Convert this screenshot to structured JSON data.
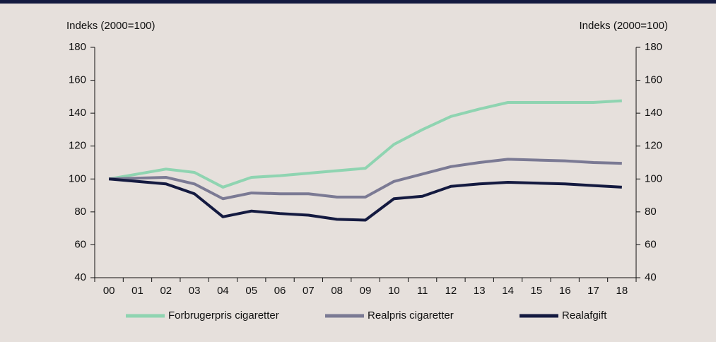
{
  "chart_data": {
    "type": "line",
    "y_label": "Indeks (2000=100)",
    "y2_label": "Indeks (2000=100)",
    "categories": [
      "00",
      "01",
      "02",
      "03",
      "04",
      "05",
      "06",
      "07",
      "08",
      "09",
      "10",
      "11",
      "12",
      "13",
      "14",
      "15",
      "16",
      "17",
      "18"
    ],
    "series": [
      {
        "name": "Forbrugerpris cigaretter",
        "color": "#8fd4b1",
        "values": [
          100,
          103,
          106,
          104,
          95,
          101,
          102,
          103.5,
          105,
          106.5,
          121,
          130,
          138,
          142.5,
          146.5,
          146.5,
          146.5,
          146.5,
          147.5
        ]
      },
      {
        "name": "Realpris cigaretter",
        "color": "#7b7a94",
        "values": [
          100,
          100.5,
          101,
          97,
          88,
          91.5,
          91,
          91,
          89,
          89,
          98.5,
          103,
          107.5,
          110,
          112,
          111.5,
          111,
          110,
          109.5
        ]
      },
      {
        "name": "Realafgift",
        "color": "#141a40",
        "values": [
          100,
          98.5,
          97,
          91,
          77,
          80.5,
          79,
          78,
          75.5,
          75,
          88,
          89.5,
          95.5,
          97,
          98,
          97.5,
          97,
          96,
          95
        ]
      }
    ],
    "ylim": [
      40,
      180
    ],
    "yticks": [
      40,
      60,
      80,
      100,
      120,
      140,
      160,
      180
    ],
    "y2lim": [
      40,
      180
    ],
    "y2ticks": [
      40,
      60,
      80,
      100,
      120,
      140,
      160,
      180
    ],
    "legend": "bottom"
  }
}
